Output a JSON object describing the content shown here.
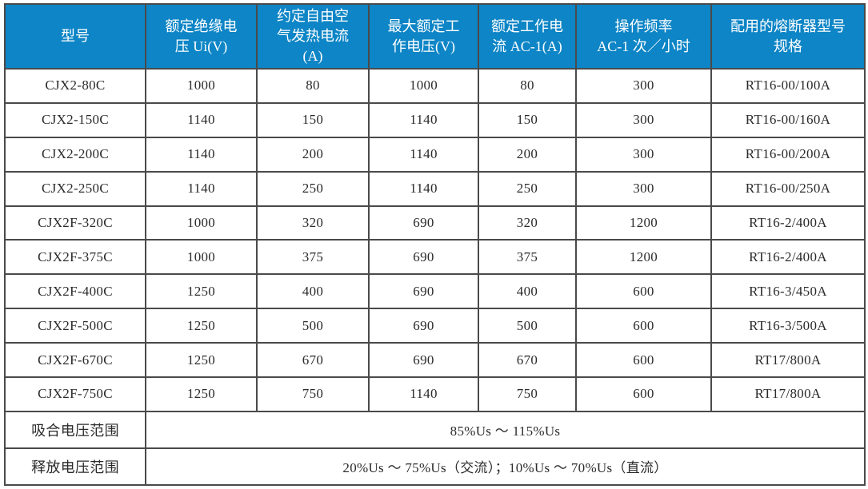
{
  "table": {
    "columns": [
      "型号",
      "额定绝缘电\n压 Ui(V)",
      "约定自由空\n气发热电流\n(A)",
      "最大额定工\n作电压(V)",
      "额定工作电\n流 AC-1(A)",
      "操作频率\nAC-1 次／小时",
      "配用的熔断器型号\n规格"
    ],
    "rows": [
      [
        "CJX2-80C",
        "1000",
        "80",
        "1000",
        "80",
        "300",
        "RT16-00/100A"
      ],
      [
        "CJX2-150C",
        "1140",
        "150",
        "1140",
        "150",
        "300",
        "RT16-00/160A"
      ],
      [
        "CJX2-200C",
        "1140",
        "200",
        "1140",
        "200",
        "300",
        "RT16-00/200A"
      ],
      [
        "CJX2-250C",
        "1140",
        "250",
        "1140",
        "250",
        "300",
        "RT16-00/250A"
      ],
      [
        "CJX2F-320C",
        "1000",
        "320",
        "690",
        "320",
        "1200",
        "RT16-2/400A"
      ],
      [
        "CJX2F-375C",
        "1000",
        "375",
        "690",
        "375",
        "1200",
        "RT16-2/400A"
      ],
      [
        "CJX2F-400C",
        "1250",
        "400",
        "690",
        "400",
        "600",
        "RT16-3/450A"
      ],
      [
        "CJX2F-500C",
        "1250",
        "500",
        "690",
        "500",
        "600",
        "RT16-3/500A"
      ],
      [
        "CJX2F-670C",
        "1250",
        "670",
        "690",
        "670",
        "600",
        "RT17/800A"
      ],
      [
        "CJX2F-750C",
        "1250",
        "750",
        "1140",
        "750",
        "600",
        "RT17/800A"
      ]
    ],
    "footer_rows": [
      {
        "label": "吸合电压范围",
        "value": "85%Us ～ 115%Us"
      },
      {
        "label": "释放电压范围",
        "value": "20%Us ～ 75%Us（交流）；10%Us ～ 70%Us（直流）"
      }
    ],
    "colors": {
      "header_bg": "#0d85c6",
      "header_text": "#ffffff",
      "border": "#4a4a4a",
      "body_text": "#2b2b2b"
    }
  }
}
